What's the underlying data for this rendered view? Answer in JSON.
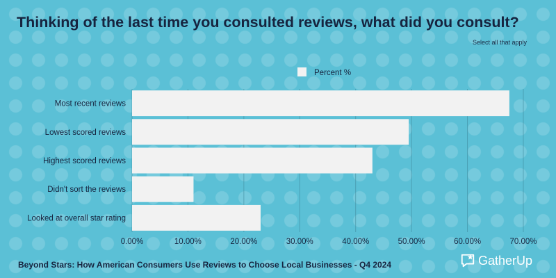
{
  "title": "Thinking of the last time you consulted reviews, what did you consult?",
  "subtitle": "Select all that apply",
  "footer": "Beyond Stars: How American Consumers Use Reviews to Choose Local Businesses - Q4 2024",
  "brand": "GatherUp",
  "icons": {
    "brand": "chat-bubble-star-icon"
  },
  "colors": {
    "background": "#5bc0d6",
    "bar": "#f2f2f2",
    "grid": "#3f8a9c",
    "text": "#16243f"
  },
  "chart_data": {
    "type": "bar",
    "orientation": "horizontal",
    "categories": [
      "Most recent reviews",
      "Lowest scored reviews",
      "Highest scored reviews",
      "Didn't sort the reviews",
      "Looked at overall star rating"
    ],
    "series": [
      {
        "name": "Percent %",
        "values": [
          0.675,
          0.495,
          0.43,
          0.11,
          0.23
        ]
      }
    ],
    "xlim": [
      0,
      0.7
    ],
    "xticks": [
      0,
      0.1,
      0.2,
      0.3,
      0.4,
      0.5,
      0.6,
      0.7
    ],
    "xtick_labels": [
      "0.00%",
      "10.00%",
      "20.00%",
      "30.00%",
      "40.00%",
      "50.00%",
      "60.00%",
      "70.00%"
    ],
    "grid": true,
    "legend": "top-center"
  }
}
